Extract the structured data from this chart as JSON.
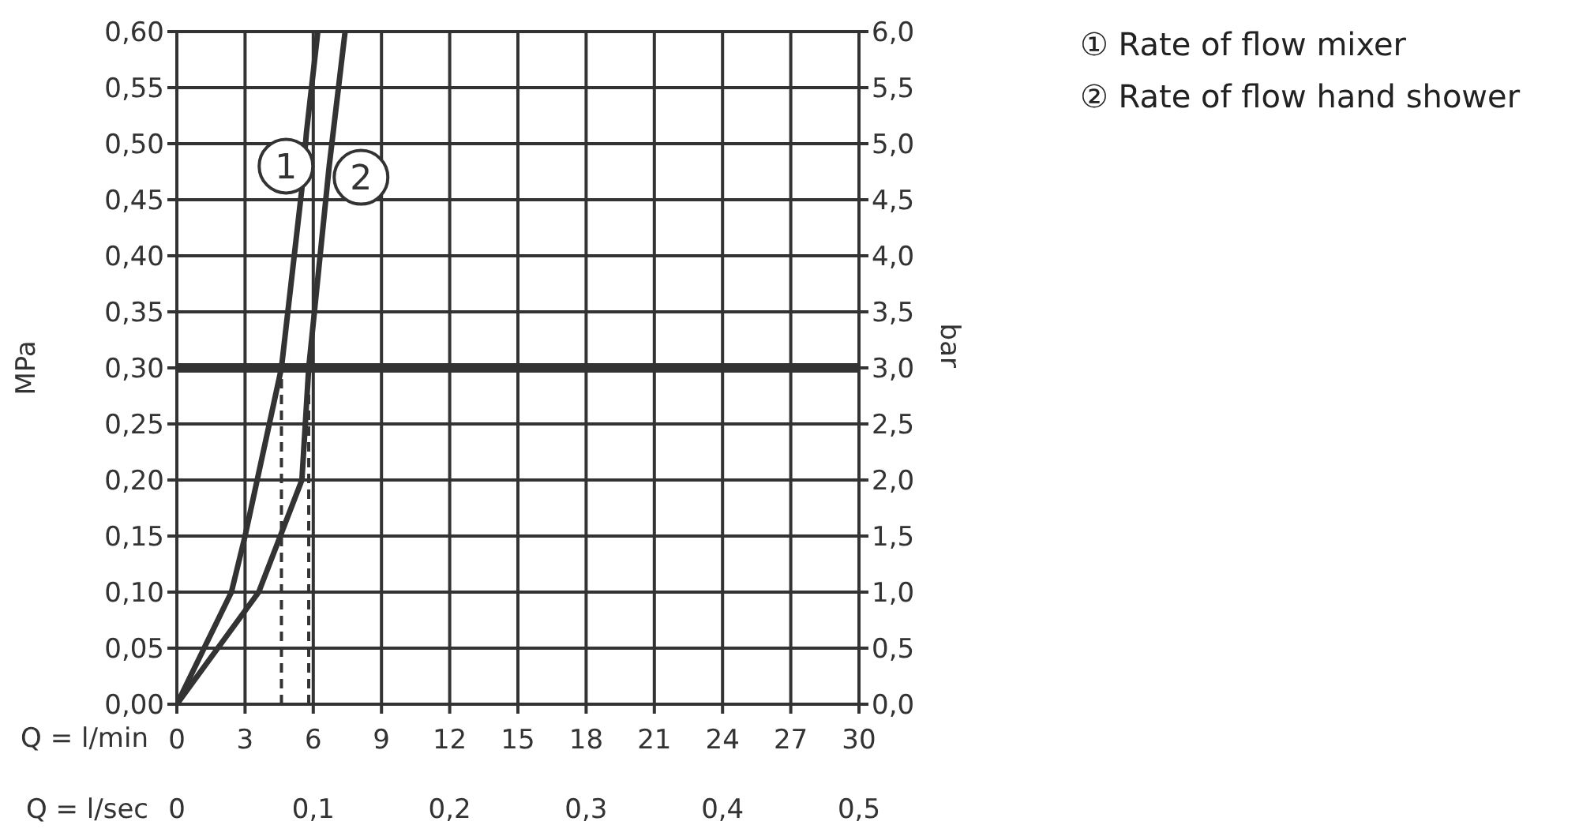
{
  "chart_data": {
    "type": "line",
    "xlabel": "Q = l/min",
    "x2label": "Q = l/sec",
    "ylabel": "MPa",
    "y2label": "bar",
    "xlim": [
      0,
      30
    ],
    "xticks": [
      0,
      3,
      6,
      9,
      12,
      15,
      18,
      21,
      24,
      27,
      30
    ],
    "x2lim": [
      0,
      0.5
    ],
    "x2ticks": [
      0,
      {
        "value": 0.1,
        "label": "0,1"
      },
      {
        "value": 0.2,
        "label": "0,2"
      },
      {
        "value": 0.3,
        "label": "0,3"
      },
      {
        "value": 0.4,
        "label": "0,4"
      },
      {
        "value": 0.5,
        "label": "0,5"
      }
    ],
    "ylim": [
      0,
      0.6
    ],
    "yticks": [
      {
        "value": 0,
        "label": "0,00"
      },
      {
        "value": 0.05,
        "label": "0,05"
      },
      {
        "value": 0.1,
        "label": "0,10"
      },
      {
        "value": 0.15,
        "label": "0,15"
      },
      {
        "value": 0.2,
        "label": "0,20"
      },
      {
        "value": 0.25,
        "label": "0,25"
      },
      {
        "value": 0.3,
        "label": "0,30"
      },
      {
        "value": 0.35,
        "label": "0,35"
      },
      {
        "value": 0.4,
        "label": "0,40"
      },
      {
        "value": 0.45,
        "label": "0,45"
      },
      {
        "value": 0.5,
        "label": "0,50"
      },
      {
        "value": 0.55,
        "label": "0,55"
      },
      {
        "value": 0.6,
        "label": "0,60"
      }
    ],
    "y2lim": [
      0,
      6
    ],
    "y2ticks": [
      {
        "value": 0,
        "label": "0,0"
      },
      {
        "value": 0.5,
        "label": "0,5"
      },
      {
        "value": 1,
        "label": "1,0"
      },
      {
        "value": 1.5,
        "label": "1,5"
      },
      {
        "value": 2,
        "label": "2,0"
      },
      {
        "value": 2.5,
        "label": "2,5"
      },
      {
        "value": 3,
        "label": "3,0"
      },
      {
        "value": 3.5,
        "label": "3,5"
      },
      {
        "value": 4,
        "label": "4,0"
      },
      {
        "value": 4.5,
        "label": "4,5"
      },
      {
        "value": 5,
        "label": "5,0"
      },
      {
        "value": 5.5,
        "label": "5,5"
      },
      {
        "value": 6,
        "label": "6,0"
      }
    ],
    "grid": true,
    "marker": "none",
    "series": [
      {
        "color": "#333333",
        "line_style": "solid",
        "x": [
          0,
          2.4,
          3,
          4.6,
          5.5,
          5.7,
          6.2
        ],
        "values": [
          0,
          0.1,
          0.15,
          0.3,
          0.46,
          0.51,
          0.6
        ]
      },
      {
        "color": "#333333",
        "line_style": "solid",
        "x": [
          0,
          3.6,
          5.5,
          5.8,
          6.3,
          6.7,
          7.4
        ],
        "values": [
          0,
          0.1,
          0.2,
          0.3,
          0.4,
          0.48,
          0.6
        ]
      },
      {
        "color": "#333333",
        "line_style": "dashed",
        "x": [
          4.6,
          4.6
        ],
        "values": [
          0,
          0.3
        ]
      },
      {
        "color": "#333333",
        "line_style": "dashed",
        "x": [
          5.8,
          5.8
        ],
        "values": [
          0,
          0.3
        ]
      }
    ],
    "ref_lines": [
      {
        "axis": "y",
        "value": 0.3,
        "color": "#333333"
      }
    ],
    "annotations": [
      {
        "text": "1",
        "x": 4.8,
        "y": 0.48
      },
      {
        "text": "2",
        "x": 8.1,
        "y": 0.47
      },
      "① Rate of flow mixer",
      "② Rate of flow hand shower"
    ]
  }
}
